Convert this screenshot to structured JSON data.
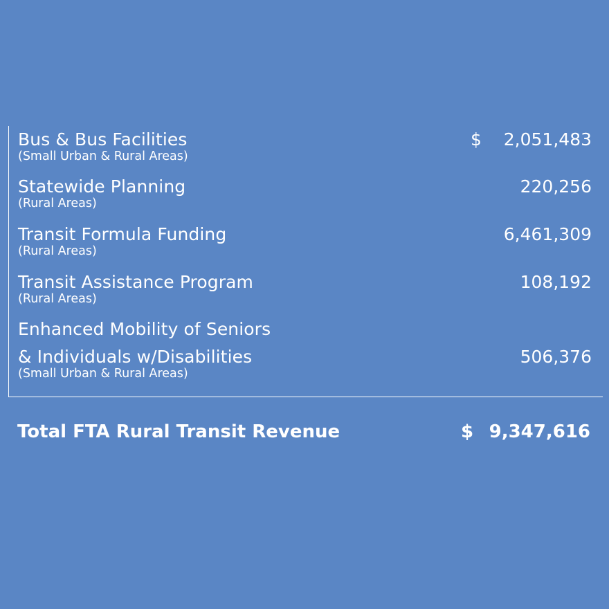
{
  "rows": [
    {
      "label": "Bus & Bus Facilities",
      "sub": "(Small Urban & Rural Areas)",
      "currency": "$",
      "amount": "2,051,483"
    },
    {
      "label": "Statewide Planning",
      "sub": "(Rural Areas)",
      "amount": "220,256"
    },
    {
      "label": "Transit Formula Funding",
      "sub": "(Rural Areas)",
      "amount": "6,461,309"
    },
    {
      "label": "Transit Assistance Program",
      "sub": "(Rural Areas)",
      "amount": "108,192"
    },
    {
      "label_line1": "Enhanced Mobility of Seniors",
      "label_line2": "& Individuals w/Disabilities",
      "sub": "(Small Urban & Rural Areas)",
      "amount": "506,376"
    }
  ],
  "total": {
    "label": "Total FTA Rural Transit Revenue",
    "currency": "$",
    "amount": "9,347,616"
  }
}
